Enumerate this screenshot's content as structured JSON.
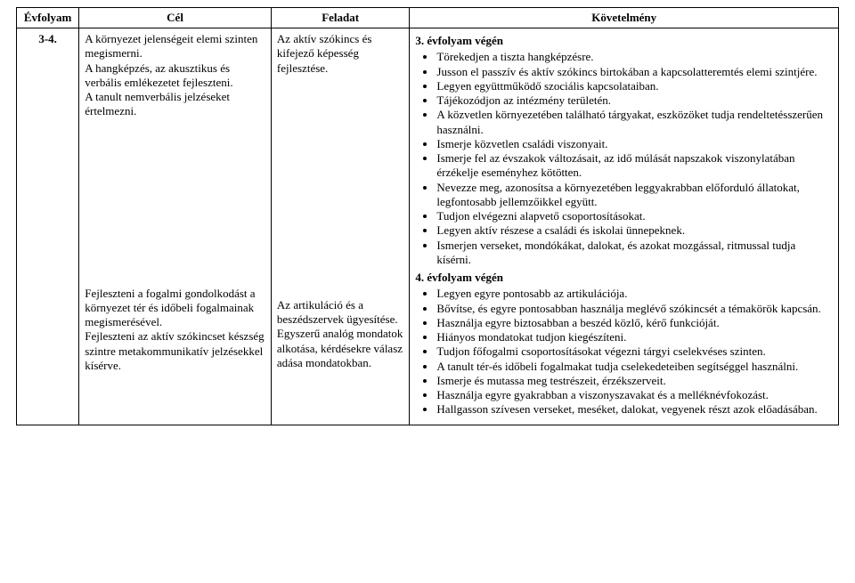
{
  "columns": {
    "col1": "Évfolyam",
    "col2": "Cél",
    "col3": "Feladat",
    "col4": "Követelmény"
  },
  "widths": {
    "col1": 70,
    "col2": 215,
    "col3": 155,
    "col4": 480
  },
  "row": {
    "grade": "3-4.",
    "cel": {
      "p1": "A környezet jelenségeit elemi szinten megismerni.\nA hangképzés, az akusztikus és verbális emlékezetet fejleszteni.\nA tanult nemverbális jelzéseket értelmezni.",
      "p2": "Fejleszteni a fogalmi gondolkodást a környezet tér és időbeli fogalmainak megismerésével.\nFejleszteni az aktív szókincset készség szintre metakommunikatív jelzésekkel kísérve."
    },
    "feladat": {
      "p1": "Az aktív szókincs és kifejező képesség fejlesztése.",
      "p2": "Az artikuláció és a beszédszervek ügyesítése.\nEgyszerű analóg mondatok alkotása, kérdésekre válasz adása mondatokban."
    },
    "kov": {
      "head3": "3. évfolyam végén",
      "list3": [
        "Törekedjen a tiszta hangképzésre.",
        "Jusson el passzív és aktív szókincs birtokában a kapcsolatteremtés elemi szintjére.",
        "Legyen együttműködő szociális kapcsolataiban.",
        "Tájékozódjon az intézmény területén.",
        "A közvetlen környezetében található tárgyakat, eszközöket tudja rendeltetésszerűen használni.",
        "Ismerje közvetlen családi viszonyait.",
        "Ismerje fel az évszakok változásait, az idő múlását napszakok viszonylatában érzékelje eseményhez kötötten.",
        "Nevezze meg, azonosítsa a környezetében leggyakrabban előforduló állatokat, legfontosabb jellemzőikkel együtt.",
        "Tudjon elvégezni alapvető csoportosításokat.",
        "Legyen aktív részese a családi és iskolai ünnepeknek.",
        "Ismerjen verseket, mondókákat, dalokat, és azokat mozgással, ritmussal tudja kísérni."
      ],
      "head4": "4. évfolyam végén",
      "list4": [
        "Legyen egyre pontosabb az artikulációja.",
        "Bővítse, és egyre pontosabban használja meglévő szókincsét a témakörök kapcsán.",
        "Használja egyre biztosabban a beszéd közlő, kérő funkcióját.",
        "Hiányos mondatokat tudjon kiegészíteni.",
        "Tudjon főfogalmi csoportosításokat végezni tárgyi cselekvéses szinten.",
        "A tanult tér-és időbeli fogalmakat tudja cselekedeteiben segítséggel használni.",
        "Ismerje és mutassa meg testrészeit, érzékszerveit.",
        "Használja egyre gyakrabban a viszonyszavakat és a melléknévfokozást.",
        "Hallgasson szívesen verseket, meséket, dalokat, vegyenek részt azok előadásában."
      ]
    }
  }
}
